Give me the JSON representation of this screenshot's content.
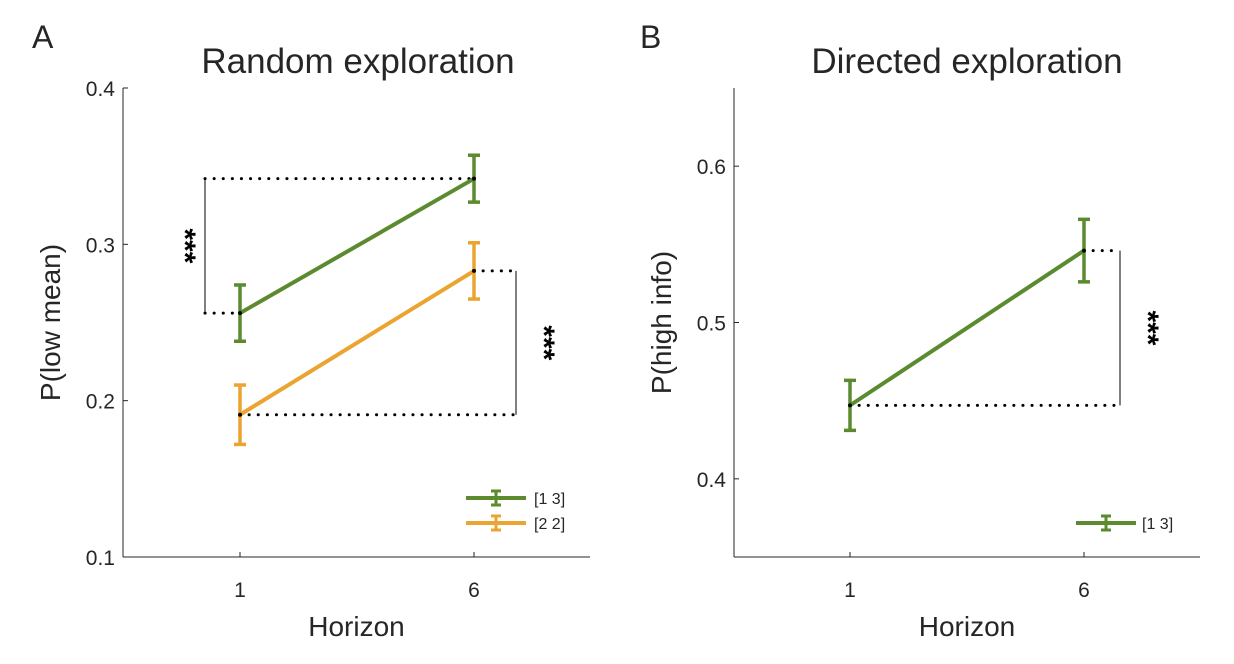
{
  "chart_data": [
    {
      "type": "line",
      "panel": "A",
      "title": "Random exploration",
      "xlabel": "Horizon",
      "ylabel": "P(low mean)",
      "categories": [
        "1",
        "6"
      ],
      "ylim": [
        0.1,
        0.4
      ],
      "yticks": [
        "0.1",
        "0.2",
        "0.3",
        "0.4"
      ],
      "legend_position": "bottom-right",
      "series": [
        {
          "name": "[1 3]",
          "color": "#5b8a2f",
          "values": [
            0.256,
            0.342
          ],
          "err": [
            0.018,
            0.015
          ]
        },
        {
          "name": "[2 2]",
          "color": "#eba430",
          "values": [
            0.191,
            0.283
          ],
          "err": [
            0.019,
            0.018
          ]
        }
      ],
      "annotations": [
        {
          "text": "***",
          "series": 0,
          "side": "left"
        },
        {
          "text": "***",
          "series": 1,
          "side": "right"
        }
      ]
    },
    {
      "type": "line",
      "panel": "B",
      "title": "Directed exploration",
      "xlabel": "Horizon",
      "ylabel": "P(high info)",
      "categories": [
        "1",
        "6"
      ],
      "ylim": [
        0.35,
        0.65
      ],
      "yticks": [
        "0.4",
        "0.5",
        "0.6"
      ],
      "legend_position": "bottom-right",
      "series": [
        {
          "name": "[1 3]",
          "color": "#5b8a2f",
          "values": [
            0.447,
            0.546
          ],
          "err": [
            0.016,
            0.02
          ]
        }
      ],
      "annotations": [
        {
          "text": "***",
          "series": 0,
          "side": "right"
        }
      ]
    }
  ]
}
